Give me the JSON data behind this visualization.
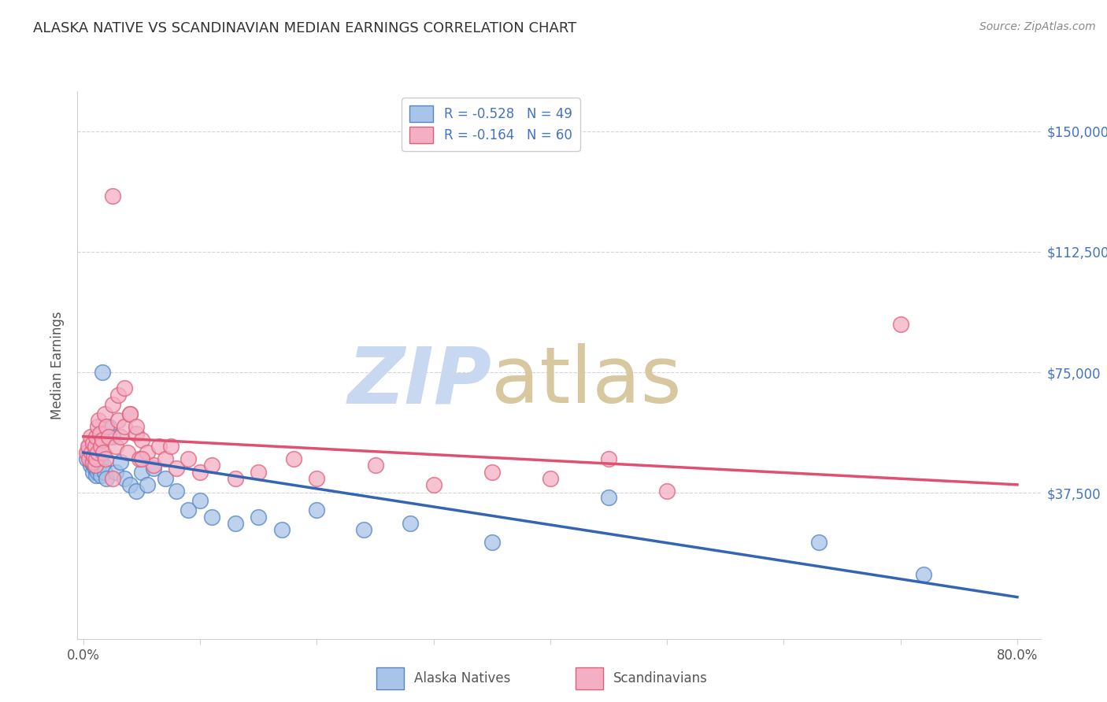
{
  "title": "ALASKA NATIVE VS SCANDINAVIAN MEDIAN EARNINGS CORRELATION CHART",
  "source": "Source: ZipAtlas.com",
  "ylabel": "Median Earnings",
  "ytick_labels": [
    "$37,500",
    "$75,000",
    "$112,500",
    "$150,000"
  ],
  "ytick_values": [
    37500,
    75000,
    112500,
    150000
  ],
  "ymax": 162500,
  "ymin": -8000,
  "xmin": -0.005,
  "xmax": 0.82,
  "legend_r1": "R = -0.528   N = 49",
  "legend_r2": "R = -0.164   N = 60",
  "alaska_color": "#a8c4e8",
  "alaska_edge_color": "#5585c5",
  "scandinavian_color": "#f4afc5",
  "scandinavian_edge_color": "#e0607a",
  "alaska_trend_color": "#3464b4",
  "scand_trend_color": "#e05070",
  "title_color": "#333333",
  "source_color": "#888888",
  "axis_label_color": "#555555",
  "ytick_color": "#4472c4",
  "xtick_color": "#555555",
  "grid_color": "#d0d0d0",
  "background_color": "#ffffff",
  "alaska_x": [
    0.003,
    0.004,
    0.005,
    0.006,
    0.007,
    0.007,
    0.008,
    0.008,
    0.009,
    0.009,
    0.01,
    0.01,
    0.011,
    0.011,
    0.012,
    0.012,
    0.013,
    0.013,
    0.014,
    0.015,
    0.016,
    0.017,
    0.018,
    0.02,
    0.022,
    0.025,
    0.028,
    0.032,
    0.035,
    0.04,
    0.045,
    0.05,
    0.055,
    0.06,
    0.07,
    0.08,
    0.09,
    0.1,
    0.11,
    0.13,
    0.15,
    0.17,
    0.2,
    0.24,
    0.28,
    0.35,
    0.45,
    0.63,
    0.72
  ],
  "alaska_y": [
    48000,
    50000,
    52000,
    46000,
    49000,
    47000,
    51000,
    44000,
    48000,
    46000,
    50000,
    45000,
    47000,
    43000,
    46000,
    44000,
    48000,
    45000,
    47000,
    43000,
    75000,
    46000,
    44000,
    42000,
    58000,
    55000,
    44000,
    47000,
    42000,
    40000,
    38000,
    44000,
    40000,
    45000,
    42000,
    38000,
    32000,
    35000,
    30000,
    28000,
    30000,
    26000,
    32000,
    26000,
    28000,
    22000,
    36000,
    22000,
    12000
  ],
  "scandinavian_x": [
    0.003,
    0.004,
    0.005,
    0.006,
    0.007,
    0.008,
    0.008,
    0.009,
    0.01,
    0.01,
    0.011,
    0.011,
    0.012,
    0.012,
    0.013,
    0.014,
    0.015,
    0.016,
    0.017,
    0.018,
    0.019,
    0.02,
    0.022,
    0.025,
    0.028,
    0.03,
    0.032,
    0.035,
    0.038,
    0.04,
    0.045,
    0.048,
    0.05,
    0.055,
    0.06,
    0.065,
    0.07,
    0.075,
    0.08,
    0.09,
    0.1,
    0.11,
    0.13,
    0.15,
    0.18,
    0.2,
    0.25,
    0.3,
    0.35,
    0.4,
    0.45,
    0.5,
    0.025,
    0.03,
    0.035,
    0.04,
    0.045,
    0.05,
    0.7,
    0.025
  ],
  "scandinavian_y": [
    50000,
    52000,
    48000,
    55000,
    50000,
    47000,
    53000,
    49000,
    52000,
    46000,
    55000,
    48000,
    58000,
    50000,
    60000,
    56000,
    52000,
    54000,
    50000,
    62000,
    48000,
    58000,
    55000,
    65000,
    52000,
    60000,
    55000,
    58000,
    50000,
    62000,
    56000,
    48000,
    54000,
    50000,
    46000,
    52000,
    48000,
    52000,
    45000,
    48000,
    44000,
    46000,
    42000,
    44000,
    48000,
    42000,
    46000,
    40000,
    44000,
    42000,
    48000,
    38000,
    130000,
    68000,
    70000,
    62000,
    58000,
    48000,
    90000,
    42000
  ],
  "alaska_trend_x": [
    0.0,
    0.8
  ],
  "alaska_trend_y": [
    50000,
    5000
  ],
  "scand_trend_x": [
    0.0,
    0.8
  ],
  "scand_trend_y": [
    55000,
    40000
  ],
  "watermark_zip_color": "#c8d8f0",
  "watermark_atlas_color": "#d8c8a0"
}
